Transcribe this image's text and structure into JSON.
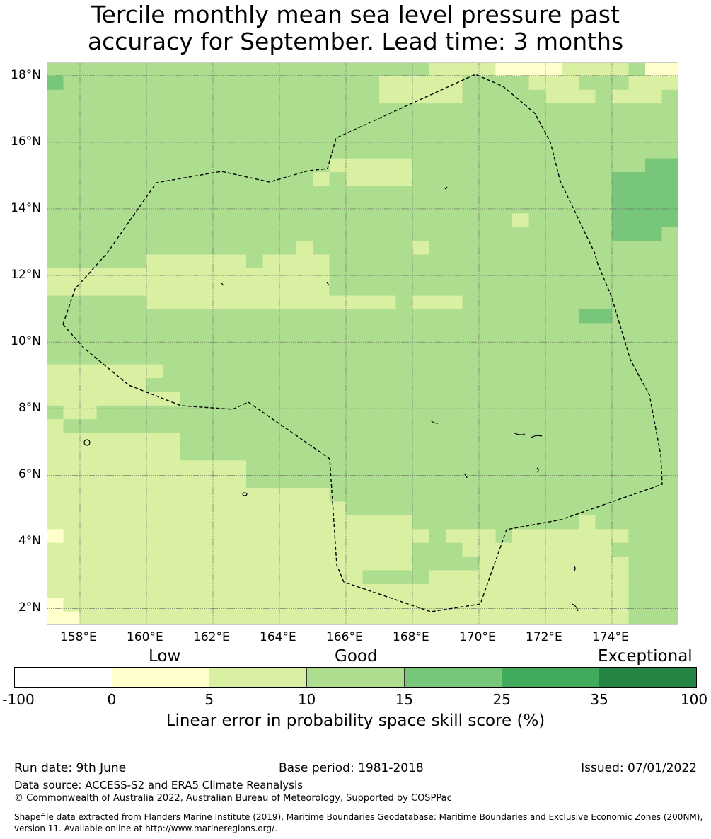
{
  "title": {
    "line1": "Tercile monthly mean sea level pressure past",
    "line2": "accuracy for September. Lead time: 3 months"
  },
  "map": {
    "lat_labels": [
      "18°N",
      "16°N",
      "14°N",
      "12°N",
      "10°N",
      "8°N",
      "6°N",
      "4°N",
      "2°N"
    ],
    "lon_labels": [
      "158°E",
      "160°E",
      "162°E",
      "164°E",
      "166°E",
      "168°E",
      "170°E",
      "172°E",
      "174°E"
    ],
    "lat_range": [
      1.5,
      18.4
    ],
    "lon_range": [
      157.0,
      176.0
    ],
    "grid": true,
    "boundary_line": "dashed",
    "category_colors": [
      "#ffffcc",
      "#d9f0a3",
      "#addd8e",
      "#78c679",
      "#41ab5d",
      "#238443"
    ],
    "cells_legend": "0=white(<0) 1=0-5 2=5-10 3=10-15 4=15-25",
    "skill_grid": [
      "33333333333333333333333222211112222311",
      "43333333333333333333222223333222333222",
      "33333333333333333333222223333322232223",
      "33333333333333333333333333333333333333",
      "33333333333333333333333333333333333333",
      "33333333333333333333333333333333333333",
      "33333333333333333333333333333333333333",
      "33333333333333333222223333333333333344",
      "33333333333333332322223333333333334444",
      "33333333333333333333333333333333334444",
      "33333333333333333333333333333333334444",
      "33333333333333333333333333332333334444",
      "33333333333333333333333333333333334443",
      "33333333333333323333332333333333333333",
      "33333322222232222333333333333333333333",
      "22222222222222222333333333333333333333",
      "22222222222222222333333333333333333333",
      "33333322222222222222232223333333333333",
      "33333333333333333333333333333333443333",
      "33333333333333333333333333333333333333",
      "33333333333333333333333333333333333333",
      "33333333333333333333333333333333333333",
      "22222223333333333333333333333333333333",
      "22222233333333333333333333333333333333",
      "22222222333333333333333333333333333333",
      "32233333333333333333333333333333333333",
      "23333333333333333333333333333333333333",
      "22222222333333333333333333333333333333",
      "22222222333333333333333333333333333333",
      "22222222222233333333333333333333333333",
      "22222222222233333333333333333333333333",
      "22222222222222222333333333333333333333",
      "22222222222222222233333333333333333333",
      "22222222222222222222223333333333233333",
      "12222222222222222222222322232222222333",
      "22222222222222222222223332222222223333",
      "22222222222222222222223333222222222333",
      "22222222222222222223333222222222222333",
      "22222222222222222222222222222222222333",
      "12222222222222222222222222222222222333",
      "11222222222222222222222222222222222333"
    ]
  },
  "colorbar": {
    "category_labels": [
      "Low",
      "Good",
      "Exceptional"
    ],
    "ticks": [
      "-100",
      "0",
      "5",
      "10",
      "15",
      "25",
      "35",
      "100"
    ],
    "colors": [
      "#ffffff",
      "#ffffcc",
      "#d9f0a3",
      "#addd8e",
      "#78c679",
      "#41ab5d",
      "#238443"
    ],
    "label": "Linear error in probability space skill score (%)"
  },
  "footer": {
    "run_date": "Run date: 9th June",
    "base_period": "Base period: 1981-2018",
    "issued": "Issued: 07/01/2022",
    "data_source": "Data source: ACCESS-S2 and ERA5 Climate Reanalysis",
    "copyright": "© Commonwealth of Australia 2022, Australian Bureau of Meteorology, Supported by COSPPac",
    "shapefile_note": "Shapefile data extracted from Flanders Marine Institute (2019), Maritime Boundaries Geodatabase: Maritime Boundaries and Exclusive Economic Zones (200NM), version 11. Available online at http://www.marineregions.org/."
  }
}
